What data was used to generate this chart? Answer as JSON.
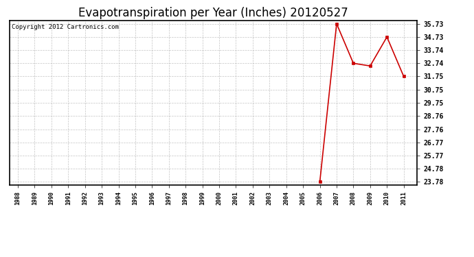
{
  "title": "Evapotranspiration per Year (Inches) 20120527",
  "copyright_text": "Copyright 2012 Cartronics.com",
  "x_years": [
    1988,
    1989,
    1990,
    1991,
    1992,
    1993,
    1994,
    1995,
    1996,
    1997,
    1998,
    1999,
    2000,
    2001,
    2002,
    2003,
    2004,
    2005,
    2006,
    2007,
    2008,
    2009,
    2010,
    2011
  ],
  "y_values": [
    null,
    null,
    null,
    null,
    null,
    null,
    null,
    null,
    null,
    null,
    null,
    null,
    null,
    null,
    null,
    null,
    null,
    null,
    23.78,
    35.73,
    32.74,
    32.54,
    34.73,
    31.75
  ],
  "y_ticks": [
    23.78,
    24.78,
    25.77,
    26.77,
    27.76,
    28.76,
    29.75,
    30.75,
    31.75,
    32.74,
    33.74,
    34.73,
    35.73
  ],
  "y_min": 23.78,
  "y_max": 35.73,
  "line_color": "#cc0000",
  "marker_color": "#cc0000",
  "background_color": "#ffffff",
  "plot_bg_color": "#ffffff",
  "grid_color": "#aaaaaa",
  "title_fontsize": 12,
  "copyright_fontsize": 6.5
}
